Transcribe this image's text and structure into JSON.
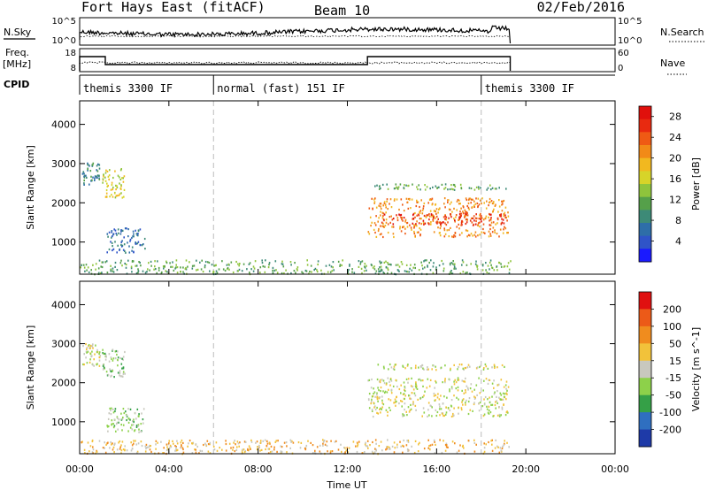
{
  "header": {
    "title": "Fort Hays East (fitACF)",
    "beam": "Beam 10",
    "date": "02/Feb/2016"
  },
  "strip_labels": {
    "nsky": "N.Sky",
    "nsearch": "N.Search",
    "freq": "Freq.",
    "freq_unit": "[MHz]",
    "nave": "Nave",
    "cpid": "CPID",
    "noise_ticks": [
      "10^5",
      "10^0"
    ],
    "freq_ticks": [
      "18",
      "8"
    ],
    "nave_ticks": [
      "60",
      "0"
    ]
  },
  "cpid_modes": [
    {
      "label": "themis 3300 IF",
      "start_hour": 0
    },
    {
      "label": "normal (fast) 151 IF",
      "start_hour": 6
    },
    {
      "label": "themis 3300 IF",
      "start_hour": 18
    }
  ],
  "chart_data": [
    {
      "type": "heatmap",
      "name": "power",
      "ylabel": "Slant Range [km]",
      "xlabel": "Time UT",
      "x_ticks": [
        "00:00",
        "04:00",
        "08:00",
        "12:00",
        "16:00",
        "20:00",
        "00:00"
      ],
      "x_range_hours": [
        0,
        24
      ],
      "y_ticks": [
        1000,
        2000,
        3000,
        4000
      ],
      "y_range_km": [
        180,
        4600
      ],
      "colorbar": {
        "label": "Power [dB]",
        "ticks": [
          "4",
          "8",
          "12",
          "16",
          "20",
          "24",
          "28"
        ],
        "range": [
          0,
          30
        ],
        "colors": [
          "#1a1aff",
          "#2f54c8",
          "#2e6ea8",
          "#3d8a77",
          "#55a04a",
          "#8fc43c",
          "#d7d429",
          "#f2b81f",
          "#f28a17",
          "#ef5a14",
          "#e82a10",
          "#e0100c"
        ]
      },
      "regions": [
        {
          "t0": 0.1,
          "t1": 0.9,
          "r0": 2450,
          "r1": 3050,
          "level": 3
        },
        {
          "t0": 1.0,
          "t1": 2.0,
          "r0": 2150,
          "r1": 2900,
          "level": 6
        },
        {
          "t0": 1.2,
          "t1": 2.9,
          "r0": 750,
          "r1": 1380,
          "level": 2
        },
        {
          "t0": 12.9,
          "t1": 19.2,
          "r0": 1150,
          "r1": 2150,
          "level": 8
        },
        {
          "t0": 13.5,
          "t1": 19.1,
          "r0": 1450,
          "r1": 1750,
          "level": 10
        },
        {
          "t0": 13.2,
          "t1": 19.1,
          "r0": 2350,
          "r1": 2500,
          "level": 4
        },
        {
          "t0": 0.0,
          "t1": 19.3,
          "r0": 200,
          "r1": 560,
          "level": 4
        }
      ]
    },
    {
      "type": "heatmap",
      "name": "velocity",
      "ylabel": "Slant Range [km]",
      "xlabel": "Time UT",
      "x_ticks": [
        "00:00",
        "04:00",
        "08:00",
        "12:00",
        "16:00",
        "20:00",
        "00:00"
      ],
      "x_range_hours": [
        0,
        24
      ],
      "y_ticks": [
        1000,
        2000,
        3000,
        4000
      ],
      "y_range_km": [
        180,
        4600
      ],
      "colorbar": {
        "label": "Velocity [m s^-1]",
        "ticks": [
          "200",
          "100",
          "50",
          "15",
          "-15",
          "-50",
          "-100",
          "-200"
        ],
        "colors": [
          "#1e3aa8",
          "#2f6fc0",
          "#35a047",
          "#8dd14a",
          "#c8c8be",
          "#f2c23a",
          "#f08c1e",
          "#ec5a18",
          "#e01010"
        ]
      },
      "regions": [
        {
          "t0": 0.1,
          "t1": 0.9,
          "r0": 2450,
          "r1": 3050,
          "level": 4
        },
        {
          "t0": 1.0,
          "t1": 2.0,
          "r0": 2150,
          "r1": 2900,
          "level": 3
        },
        {
          "t0": 1.2,
          "t1": 2.9,
          "r0": 750,
          "r1": 1380,
          "level": 3
        },
        {
          "t0": 12.9,
          "t1": 19.2,
          "r0": 1150,
          "r1": 2150,
          "level": 4
        },
        {
          "t0": 13.2,
          "t1": 19.1,
          "r0": 2350,
          "r1": 2500,
          "level": 4
        },
        {
          "t0": 0.0,
          "t1": 19.3,
          "r0": 200,
          "r1": 560,
          "level": 5
        }
      ]
    }
  ]
}
